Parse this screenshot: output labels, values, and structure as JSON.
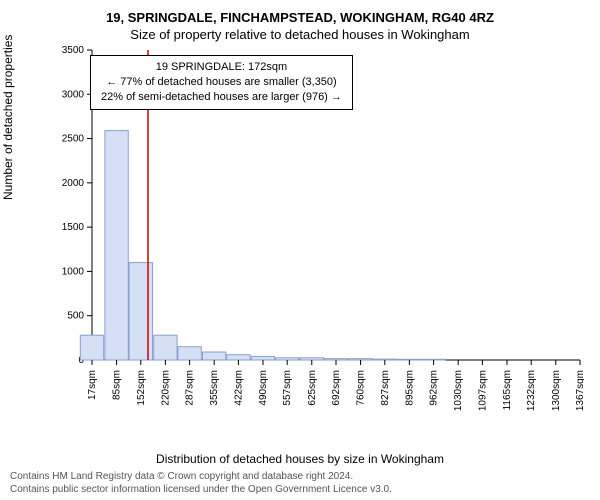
{
  "title1": "19, SPRINGDALE, FINCHAMPSTEAD, WOKINGHAM, RG40 4RZ",
  "title2": "Size of property relative to detached houses in Wokingham",
  "infobox": {
    "line1": "19 SPRINGDALE: 172sqm",
    "line2": "← 77% of detached houses are smaller (3,350)",
    "line3": "22% of semi-detached houses are larger (976) →"
  },
  "ylabel": "Number of detached properties",
  "xlabel": "Distribution of detached houses by size in Wokingham",
  "footer": {
    "line1": "Contains HM Land Registry data © Crown copyright and database right 2024.",
    "line2": "Contains public sector information licensed under the Open Government Licence v3.0."
  },
  "chart": {
    "type": "bar",
    "ylim": [
      0,
      3500
    ],
    "ytick_step": 500,
    "x_ticks": [
      17,
      85,
      152,
      220,
      287,
      355,
      422,
      490,
      557,
      625,
      692,
      760,
      827,
      895,
      962,
      1030,
      1097,
      1165,
      1232,
      1300,
      1367
    ],
    "x_unit": "sqm",
    "bar_width": 0.95,
    "values": [
      280,
      2590,
      1100,
      280,
      150,
      90,
      60,
      40,
      25,
      25,
      15,
      15,
      10,
      8,
      8,
      5,
      5,
      5,
      3,
      3,
      3
    ],
    "bar_fill": "#d6e0f5",
    "bar_stroke": "#8aa0d0",
    "marker_x": 172,
    "marker_color": "#cc0000",
    "axis_color": "#000000",
    "background": "#ffffff",
    "title_fontsize": 13,
    "label_fontsize": 12,
    "tick_fontsize": 10
  }
}
